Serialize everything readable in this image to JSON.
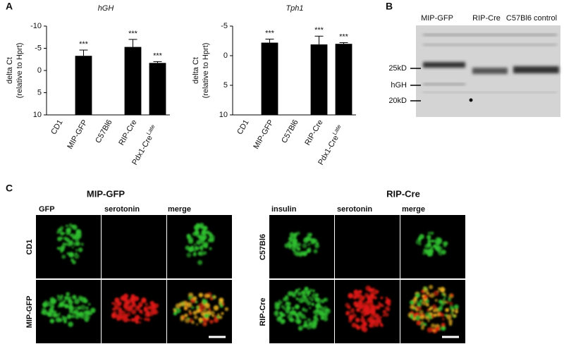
{
  "panel_labels": [
    "A",
    "B",
    "C"
  ],
  "chart_data": [
    {
      "type": "bar",
      "title": "hGH",
      "ylabel": "delta Ct",
      "ylabel_note": "(relative to Hprt)",
      "categories": [
        "CD1",
        "MIP-GFP",
        "C57Bl6",
        "RIP-Cre",
        "Pdx1-Cre"
      ],
      "category_superscripts": [
        null,
        null,
        null,
        null,
        "Late"
      ],
      "values": [
        null,
        -3.3,
        null,
        -5.3,
        -1.7
      ],
      "errors": [
        null,
        1.3,
        null,
        1.7,
        0.3
      ],
      "annotations": [
        null,
        "***",
        null,
        "***",
        "***"
      ],
      "color": "#000000",
      "ylim": [
        10,
        -10
      ],
      "yticks": [
        -10,
        -5,
        0,
        5,
        10
      ]
    },
    {
      "type": "bar",
      "title": "Tph1",
      "ylabel": "delta Ct",
      "ylabel_note": "(relative to Hprt)",
      "categories": [
        "CD1",
        "MIP-GFP",
        "C57Bl6",
        "RIP-Cre",
        "Pdx1-Cre"
      ],
      "category_superscripts": [
        null,
        null,
        null,
        null,
        "Late"
      ],
      "values": [
        null,
        -2.2,
        null,
        -1.9,
        -2.0
      ],
      "errors": [
        null,
        0.6,
        null,
        1.4,
        0.2
      ],
      "annotations": [
        null,
        "***",
        null,
        "***",
        "***"
      ],
      "color": "#000000",
      "ylim": [
        10,
        -5
      ],
      "yticks": [
        -5,
        0,
        5,
        10
      ]
    }
  ],
  "blot": {
    "lanes": [
      "MIP-GFP",
      "RIP-Cre",
      "C57Bl6 control"
    ],
    "markers": [
      "25kD",
      "hGH",
      "20kD"
    ]
  },
  "microscopy": [
    {
      "title": "MIP-GFP",
      "columns": [
        "GFP",
        "serotonin",
        "merge"
      ],
      "rows": [
        "CD1",
        "MIP-GFP"
      ]
    },
    {
      "title": "RIP-Cre",
      "columns": [
        "insulin",
        "serotonin",
        "merge"
      ],
      "rows": [
        "C57Bl6",
        "RIP-Cre"
      ]
    }
  ]
}
